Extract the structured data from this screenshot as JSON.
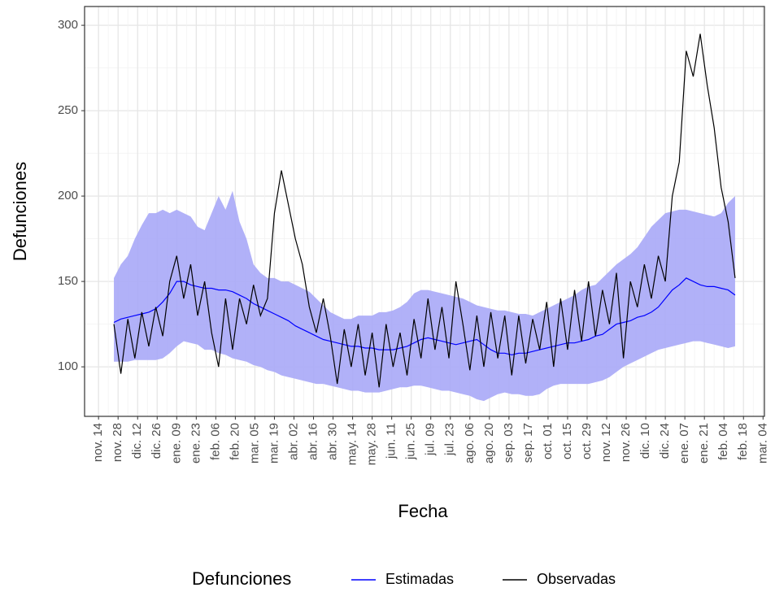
{
  "chart_data": {
    "type": "line",
    "x_label": "Fecha",
    "y_label": "Defunciones",
    "legend_title": "Defunciones",
    "legend_position": "bottom",
    "grid": true,
    "x": [
      11,
      16,
      21,
      26,
      31,
      36,
      41,
      46,
      51,
      56,
      61,
      66,
      71,
      76,
      81,
      86,
      91,
      96,
      101,
      106,
      111,
      116,
      121,
      126,
      131,
      136,
      141,
      146,
      151,
      156,
      161,
      166,
      171,
      176,
      181,
      186,
      191,
      196,
      201,
      206,
      211,
      216,
      221,
      226,
      231,
      236,
      241,
      246,
      251,
      256,
      261,
      266,
      271,
      276,
      281,
      286,
      291,
      296,
      301,
      306,
      311,
      316,
      321,
      326,
      331,
      336,
      341,
      346,
      351,
      356,
      361,
      366,
      371,
      376,
      381,
      386,
      391,
      396,
      401,
      406,
      411,
      416,
      421,
      426,
      431,
      436,
      441,
      446,
      451,
      456
    ],
    "band": {
      "color": "#a9a9f7",
      "lower": [
        103,
        103,
        103,
        104,
        104,
        104,
        104,
        105,
        108,
        112,
        115,
        114,
        113,
        110,
        110,
        108,
        107,
        105,
        104,
        103,
        101,
        100,
        98,
        97,
        95,
        94,
        93,
        92,
        91,
        90,
        90,
        89,
        88,
        87,
        86,
        86,
        85,
        85,
        85,
        86,
        87,
        88,
        88,
        89,
        89,
        88,
        87,
        86,
        86,
        85,
        84,
        83,
        81,
        80,
        82,
        84,
        85,
        84,
        84,
        83,
        83,
        84,
        87,
        89,
        90,
        90,
        90,
        90,
        90,
        91,
        92,
        94,
        97,
        100,
        102,
        104,
        106,
        108,
        110,
        111,
        112,
        113,
        114,
        115,
        115,
        114,
        113,
        112,
        111,
        112
      ],
      "upper": [
        152,
        160,
        165,
        175,
        183,
        190,
        190,
        192,
        190,
        192,
        190,
        188,
        182,
        180,
        190,
        200,
        192,
        203,
        185,
        175,
        160,
        155,
        152,
        152,
        150,
        150,
        148,
        146,
        144,
        140,
        136,
        132,
        130,
        128,
        128,
        130,
        130,
        130,
        132,
        132,
        133,
        135,
        138,
        143,
        145,
        145,
        144,
        143,
        142,
        141,
        140,
        138,
        136,
        135,
        134,
        133,
        133,
        132,
        131,
        131,
        130,
        132,
        134,
        136,
        138,
        140,
        142,
        145,
        147,
        148,
        152,
        156,
        160,
        163,
        166,
        170,
        176,
        182,
        186,
        190,
        191,
        192,
        192,
        191,
        190,
        189,
        188,
        190,
        196,
        200
      ]
    },
    "series": [
      {
        "name": "Estimadas",
        "color": "#0000ff",
        "values": [
          126,
          128,
          129,
          130,
          131,
          132,
          134,
          138,
          143,
          150,
          150,
          148,
          147,
          146,
          146,
          145,
          145,
          144,
          142,
          140,
          137,
          135,
          133,
          131,
          129,
          127,
          124,
          122,
          120,
          118,
          116,
          115,
          114,
          113,
          112,
          112,
          111,
          111,
          110,
          110,
          110,
          111,
          112,
          114,
          116,
          117,
          116,
          115,
          114,
          113,
          114,
          115,
          116,
          113,
          110,
          108,
          108,
          107,
          108,
          108,
          109,
          110,
          111,
          112,
          113,
          114,
          114,
          115,
          116,
          118,
          119,
          122,
          125,
          126,
          127,
          129,
          130,
          132,
          135,
          140,
          145,
          148,
          152,
          150,
          148,
          147,
          147,
          146,
          145,
          142
        ]
      },
      {
        "name": "Observadas",
        "color": "#000000",
        "values": [
          125,
          96,
          128,
          105,
          132,
          112,
          135,
          118,
          150,
          165,
          140,
          160,
          130,
          150,
          120,
          100,
          140,
          110,
          140,
          125,
          148,
          130,
          140,
          190,
          215,
          195,
          175,
          160,
          135,
          120,
          140,
          118,
          90,
          122,
          100,
          125,
          95,
          120,
          88,
          125,
          100,
          120,
          95,
          128,
          105,
          140,
          110,
          135,
          105,
          150,
          125,
          98,
          130,
          100,
          132,
          105,
          130,
          95,
          130,
          102,
          128,
          110,
          138,
          100,
          140,
          110,
          145,
          115,
          150,
          118,
          145,
          125,
          155,
          105,
          150,
          135,
          160,
          140,
          165,
          150,
          200,
          220,
          285,
          270,
          295,
          265,
          240,
          205,
          185,
          152
        ]
      }
    ],
    "xlim": [
      -10,
      477
    ],
    "xticks": [
      {
        "value": 0,
        "label": "nov. 14"
      },
      {
        "value": 14,
        "label": "nov. 28"
      },
      {
        "value": 28,
        "label": "dic. 12"
      },
      {
        "value": 42,
        "label": "dic. 26"
      },
      {
        "value": 56,
        "label": "ene. 09"
      },
      {
        "value": 70,
        "label": "ene. 23"
      },
      {
        "value": 84,
        "label": "feb. 06"
      },
      {
        "value": 98,
        "label": "feb. 20"
      },
      {
        "value": 112,
        "label": "mar. 05"
      },
      {
        "value": 126,
        "label": "mar. 19"
      },
      {
        "value": 140,
        "label": "abr. 02"
      },
      {
        "value": 154,
        "label": "abr. 16"
      },
      {
        "value": 168,
        "label": "abr. 30"
      },
      {
        "value": 182,
        "label": "may. 14"
      },
      {
        "value": 196,
        "label": "may. 28"
      },
      {
        "value": 210,
        "label": "jun. 11"
      },
      {
        "value": 224,
        "label": "jun. 25"
      },
      {
        "value": 238,
        "label": "jul. 09"
      },
      {
        "value": 252,
        "label": "jul. 23"
      },
      {
        "value": 266,
        "label": "ago. 06"
      },
      {
        "value": 280,
        "label": "ago. 20"
      },
      {
        "value": 294,
        "label": "sep. 03"
      },
      {
        "value": 308,
        "label": "sep. 17"
      },
      {
        "value": 322,
        "label": "oct. 01"
      },
      {
        "value": 336,
        "label": "oct. 15"
      },
      {
        "value": 350,
        "label": "oct. 29"
      },
      {
        "value": 364,
        "label": "nov. 12"
      },
      {
        "value": 378,
        "label": "nov. 26"
      },
      {
        "value": 392,
        "label": "dic. 10"
      },
      {
        "value": 406,
        "label": "dic. 24"
      },
      {
        "value": 420,
        "label": "ene. 07"
      },
      {
        "value": 434,
        "label": "ene. 21"
      },
      {
        "value": 448,
        "label": "feb. 04"
      },
      {
        "value": 462,
        "label": "feb. 18"
      },
      {
        "value": 476,
        "label": "mar. 04"
      }
    ],
    "ylim": [
      71,
      311
    ],
    "yticks": [
      100,
      150,
      200,
      250,
      300
    ]
  }
}
